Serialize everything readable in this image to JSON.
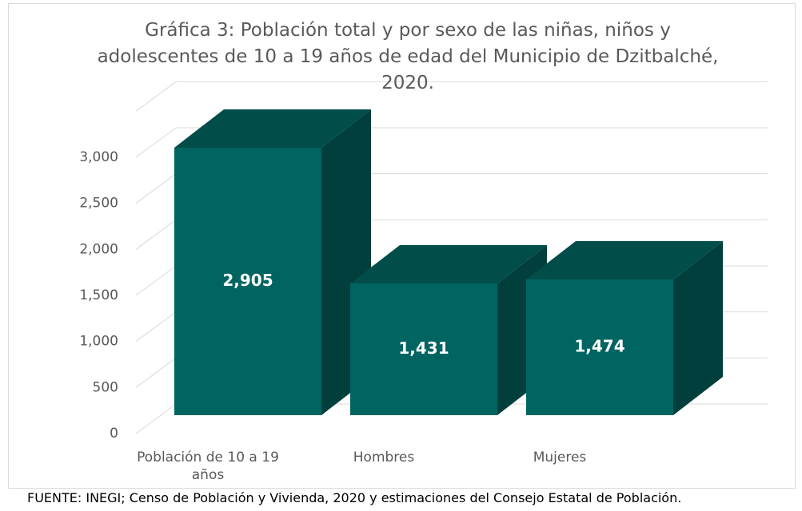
{
  "chart_data": {
    "type": "bar3d",
    "title": "Gráfica 3: Población total y por sexo de las niñas, niños y adolescentes de 10 a 19 años de edad del Municipio de Dzitbalché, 2020.",
    "categories": [
      "Población de 10 a 19 años",
      "Hombres",
      "Mujeres"
    ],
    "values": [
      2905,
      1431,
      1474
    ],
    "value_labels": [
      "2,905",
      "1,431",
      "1,474"
    ],
    "color": "#006461",
    "ylim": [
      0,
      3500
    ],
    "yticks": [
      0,
      500,
      {
        "value": 1000,
        "label": "1,000"
      },
      {
        "value": 1500,
        "label": "1,500"
      },
      {
        "value": 2000,
        "label": "2,000"
      },
      {
        "value": 2500,
        "label": "2,500"
      },
      {
        "value": 3000,
        "label": "3,000"
      }
    ],
    "grid": true,
    "source": "FUENTE: INEGI; Censo de Población y Vivienda, 2020 y estimaciones del Consejo Estatal de Población."
  }
}
